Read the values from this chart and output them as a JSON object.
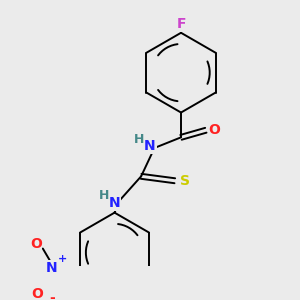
{
  "background_color": "#ebebeb",
  "bond_color": "#000000",
  "atom_colors": {
    "F": "#cc44cc",
    "O": "#ff2222",
    "N": "#2222ff",
    "S": "#cccc00",
    "H": "#448888",
    "C": "#000000"
  },
  "figsize": [
    3.0,
    3.0
  ],
  "dpi": 100
}
